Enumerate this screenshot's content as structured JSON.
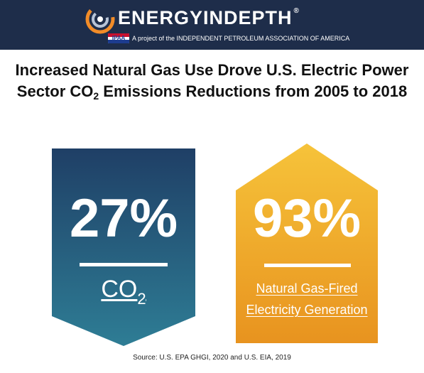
{
  "header": {
    "brand": "ENERGYINDEPTH",
    "registered_mark": "®",
    "badge_text": "IPAA",
    "tagline": "A project of the INDEPENDENT PETROLEUM ASSOCIATION OF AMERICA",
    "background_color": "#1e2d4a",
    "logo_icon": "swirl-gear-icon"
  },
  "title": {
    "line1": "Increased Natural Gas Use Drove U.S. Electric Power",
    "line2_before": "Sector CO",
    "line2_sub": "2",
    "line2_after": " Emissions Reductions from 2005 to 2018"
  },
  "stats": [
    {
      "value": "27%",
      "label_main": "CO",
      "label_sub": "2",
      "shape": "down-arrow",
      "color_top": "#1f3f66",
      "color_bottom": "#2e7d95"
    },
    {
      "value": "93%",
      "label_line1": "Natural Gas-Fired",
      "label_line2": "Electricity Generation",
      "shape": "up-arrow",
      "color_top": "#f6c33a",
      "color_bottom": "#e8931f"
    }
  ],
  "source": "Source: U.S. EPA GHGI, 2020 and U.S. EIA, 2019"
}
